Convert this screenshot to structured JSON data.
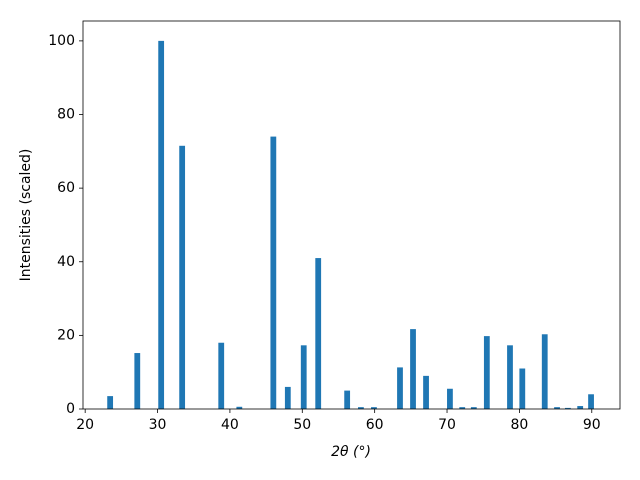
{
  "chart_data": {
    "type": "bar",
    "x_label": "2θ (°)",
    "y_label": "Intensities (scaled)",
    "x": [
      23.45,
      27.2,
      30.5,
      33.4,
      38.8,
      41.3,
      46.0,
      48.0,
      50.2,
      52.2,
      56.2,
      58.1,
      59.9,
      63.5,
      65.3,
      67.1,
      70.4,
      72.1,
      73.7,
      75.5,
      78.7,
      80.4,
      83.5,
      85.2,
      86.7,
      88.4,
      89.9
    ],
    "values": [
      3.5,
      15.2,
      100,
      71.5,
      18,
      0.6,
      74,
      6,
      17.3,
      41,
      5,
      0.5,
      0.5,
      11.3,
      21.7,
      9,
      5.5,
      0.5,
      0.5,
      19.8,
      17.3,
      11,
      20.3,
      0.5,
      0.3,
      0.8,
      4
    ],
    "color": "#1f77b4",
    "xlim": [
      19.7,
      93.9
    ],
    "xticks": [
      20,
      30,
      40,
      50,
      60,
      70,
      80,
      90
    ],
    "ylim": [
      0,
      105.4
    ],
    "yticks": [
      0,
      20,
      40,
      60,
      80,
      100
    ]
  }
}
